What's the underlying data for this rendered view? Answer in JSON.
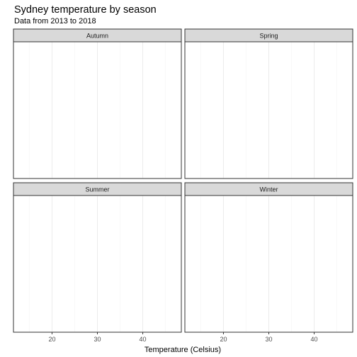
{
  "chart_data": {
    "type": "bar",
    "title": "Sydney temperature by season",
    "subtitle": "Data from 2013 to 2018",
    "xlabel": "Temperature (Celsius)",
    "ylabel": "",
    "xlim": [
      11.5,
      48.5
    ],
    "x_ticks": [
      20,
      30,
      40
    ],
    "x_minor_ticks": [
      15,
      25,
      35,
      45
    ],
    "grid": true,
    "facets": [
      {
        "label": "Autumn",
        "values": []
      },
      {
        "label": "Spring",
        "values": []
      },
      {
        "label": "Summer",
        "values": []
      },
      {
        "label": "Winter",
        "values": []
      }
    ]
  }
}
